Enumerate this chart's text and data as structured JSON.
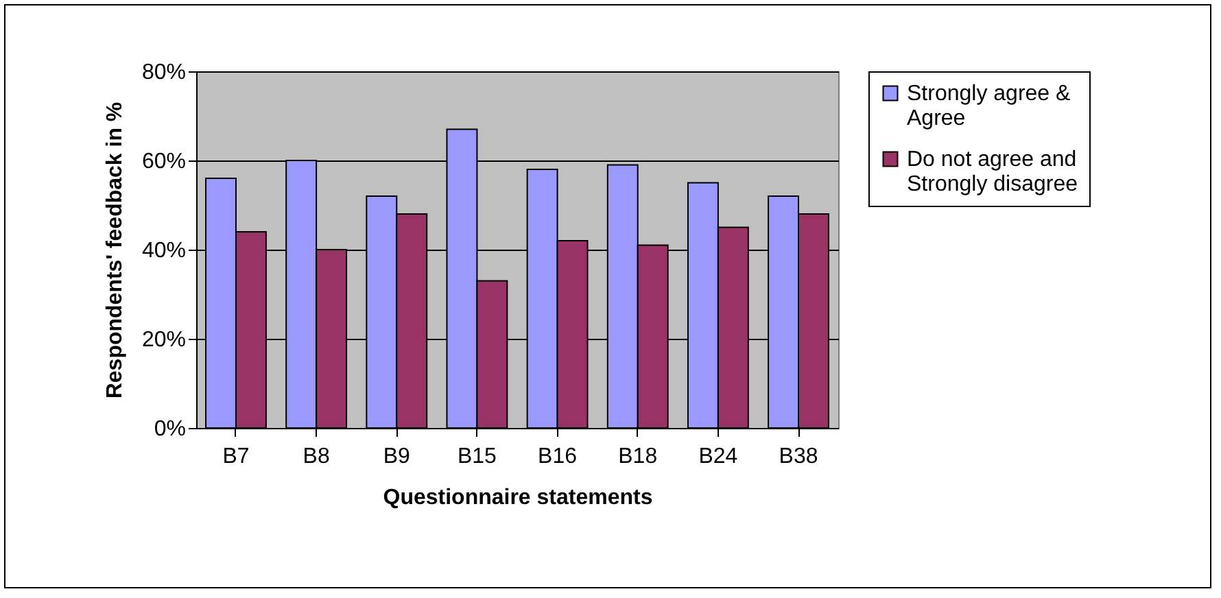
{
  "chart_data": {
    "type": "bar",
    "xlabel": "Questionnaire statements",
    "ylabel": "Respondents' feedback in %",
    "categories": [
      "B7",
      "B8",
      "B9",
      "B15",
      "B16",
      "B18",
      "B24",
      "B38"
    ],
    "series": [
      {
        "name": "Strongly agree & Agree",
        "color": "#9999ff",
        "values": [
          56,
          60,
          52,
          67,
          58,
          59,
          55,
          52
        ]
      },
      {
        "name": "Do not agree and Strongly disagree",
        "color": "#993366",
        "values": [
          44,
          40,
          48,
          33,
          42,
          41,
          45,
          48
        ]
      }
    ],
    "ylim": [
      0,
      80
    ],
    "yticks": [
      {
        "value": 0,
        "label": "0%"
      },
      {
        "value": 20,
        "label": "20%"
      },
      {
        "value": 40,
        "label": "40%"
      },
      {
        "value": 60,
        "label": "60%"
      },
      {
        "value": 80,
        "label": "80%"
      }
    ],
    "grid": "y",
    "legend": "right"
  }
}
